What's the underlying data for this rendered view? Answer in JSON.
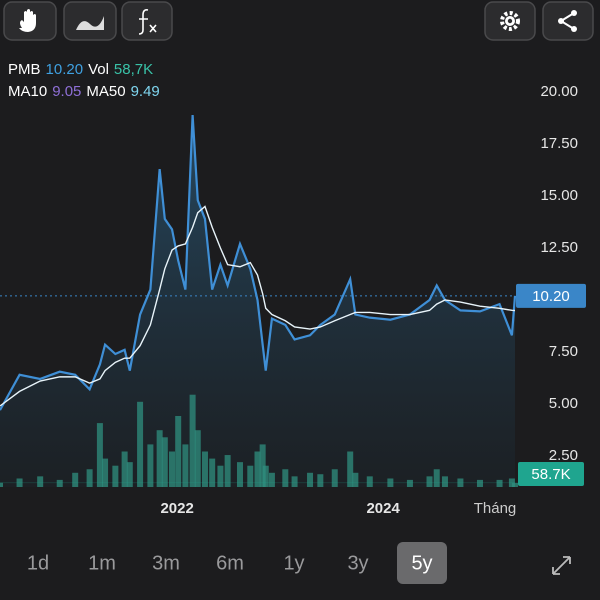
{
  "legend": [
    [
      {
        "text": "PMB",
        "color": "#ffffff"
      },
      {
        "text": "10.20",
        "color": "#3fa0e0"
      },
      {
        "text": "Vol",
        "color": "#ffffff"
      },
      {
        "text": "58,7K",
        "color": "#39c2a8"
      }
    ],
    [
      {
        "text": "MA10",
        "color": "#ffffff"
      },
      {
        "text": "9.05",
        "color": "#8e6fd6"
      },
      {
        "text": "MA50",
        "color": "#ffffff"
      },
      {
        "text": "9.49",
        "color": "#7fd6f0"
      }
    ]
  ],
  "tabs": {
    "items": [
      "1d",
      "1m",
      "3m",
      "6m",
      "1y",
      "3y",
      "5y"
    ],
    "selected": 6
  },
  "chart_data": {
    "type": "line",
    "x_label": "Tháng",
    "x": [
      2020.28,
      2020.47,
      2020.67,
      2020.86,
      2021.01,
      2021.15,
      2021.25,
      2021.3,
      2021.4,
      2021.49,
      2021.54,
      2021.64,
      2021.74,
      2021.83,
      2021.88,
      2021.95,
      2022.01,
      2022.08,
      2022.15,
      2022.2,
      2022.27,
      2022.34,
      2022.42,
      2022.49,
      2022.61,
      2022.71,
      2022.78,
      2022.83,
      2022.86,
      2022.92,
      2023.05,
      2023.14,
      2023.29,
      2023.39,
      2023.53,
      2023.68,
      2023.73,
      2023.87,
      2024.07,
      2024.26,
      2024.45,
      2024.52,
      2024.6,
      2024.75,
      2024.94,
      2025.13,
      2025.25,
      2025.28
    ],
    "series": [
      {
        "name": "PMB",
        "color": "#3f8fd6",
        "values": [
          4.7,
          6.4,
          6.2,
          6.55,
          6.4,
          5.7,
          6.9,
          7.85,
          7.4,
          7.6,
          6.6,
          9.3,
          10.5,
          16.3,
          13.9,
          13.4,
          11.9,
          10.5,
          18.9,
          14.8,
          13.9,
          10.5,
          11.7,
          10.7,
          12.7,
          11.5,
          10.0,
          7.85,
          6.6,
          9.1,
          8.8,
          8.1,
          8.3,
          8.8,
          9.3,
          11.0,
          9.3,
          9.15,
          9.05,
          9.3,
          10.0,
          10.7,
          10.0,
          9.5,
          9.45,
          9.8,
          8.3,
          10.2
        ]
      },
      {
        "name": "MA50",
        "color": "#e8f4fa",
        "values": [
          4.9,
          5.6,
          6.1,
          6.3,
          6.3,
          6.0,
          6.2,
          6.6,
          7.0,
          7.2,
          7.2,
          7.8,
          8.8,
          10.5,
          11.5,
          12.4,
          12.6,
          12.7,
          13.5,
          14.2,
          14.5,
          13.5,
          12.5,
          11.7,
          11.6,
          11.8,
          11.2,
          10.3,
          9.6,
          9.3,
          9.0,
          8.7,
          8.6,
          8.7,
          9.0,
          9.3,
          9.4,
          9.4,
          9.3,
          9.3,
          9.5,
          9.8,
          10.0,
          9.9,
          9.7,
          9.6,
          9.5,
          9.49
        ]
      },
      {
        "name": "Vol",
        "color": "#2f8f7f",
        "axis": "y2",
        "values": [
          60,
          120,
          150,
          100,
          200,
          250,
          900,
          400,
          300,
          500,
          350,
          1200,
          600,
          800,
          700,
          500,
          1000,
          600,
          1300,
          800,
          500,
          400,
          300,
          450,
          350,
          300,
          500,
          600,
          300,
          200,
          250,
          150,
          200,
          180,
          250,
          500,
          200,
          150,
          120,
          100,
          150,
          250,
          150,
          120,
          100,
          100,
          120,
          58.7
        ]
      }
    ],
    "xlim": [
      2020.28,
      2025.28
    ],
    "xticks": [
      2022,
      2024
    ],
    "ylim": [
      1,
      21.5
    ],
    "yticks": [
      {
        "value": 2.5,
        "label": "2.50"
      },
      {
        "value": 5,
        "label": "5.00"
      },
      {
        "value": 7.5,
        "label": "7.50"
      },
      {
        "value": 10,
        "label": "10.00"
      },
      {
        "value": 12.5,
        "label": "12.50"
      },
      {
        "value": 15,
        "label": "15.00"
      },
      {
        "value": 17.5,
        "label": "17.50"
      },
      {
        "value": 20,
        "label": "20.00"
      }
    ],
    "y2lim": [
      0,
      6000
    ],
    "price_marker": {
      "value": 10.2,
      "label": "10.20",
      "color": "#3a86c8"
    },
    "volume_marker": {
      "value": 58.7,
      "label": "58.7K",
      "color": "#1fa58f"
    }
  }
}
